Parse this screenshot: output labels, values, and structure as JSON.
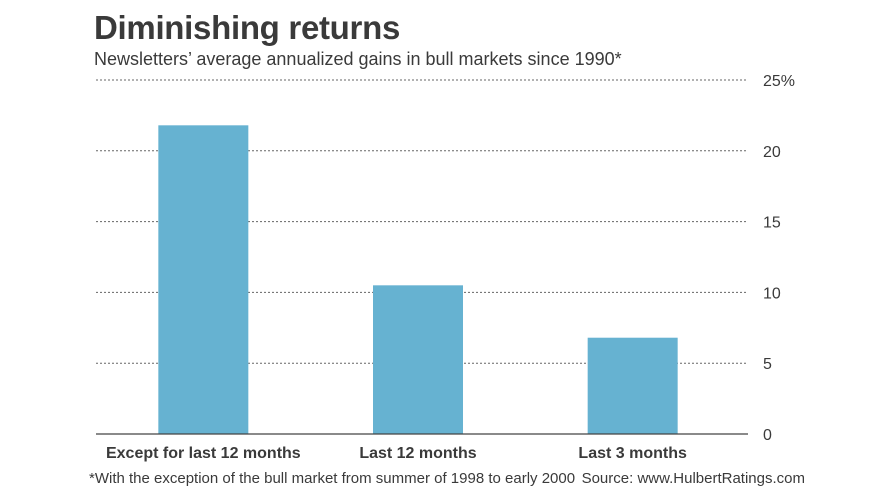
{
  "title": "Diminishing returns",
  "subtitle": "Newsletters’ average annualized gains in bull markets since 1990*",
  "footnote": "*With the exception of the bull market from summer of 1998 to early 2000",
  "source": "Source: www.HulbertRatings.com",
  "chart_data": {
    "type": "bar",
    "categories": [
      "Except for last 12 months",
      "Last 12 months",
      "Last 3 months"
    ],
    "values": [
      21.8,
      10.5,
      6.8
    ],
    "ylim": [
      0,
      25
    ],
    "yticks": [
      0,
      5,
      10,
      15,
      20,
      25
    ],
    "ytick_labels": [
      "0",
      "5",
      "10",
      "15",
      "20",
      "25%"
    ],
    "grid": true,
    "colors": {
      "bar": "#66b2d1",
      "text": "#3a3a3a",
      "grid": "#666666",
      "axis": "#444444"
    }
  }
}
